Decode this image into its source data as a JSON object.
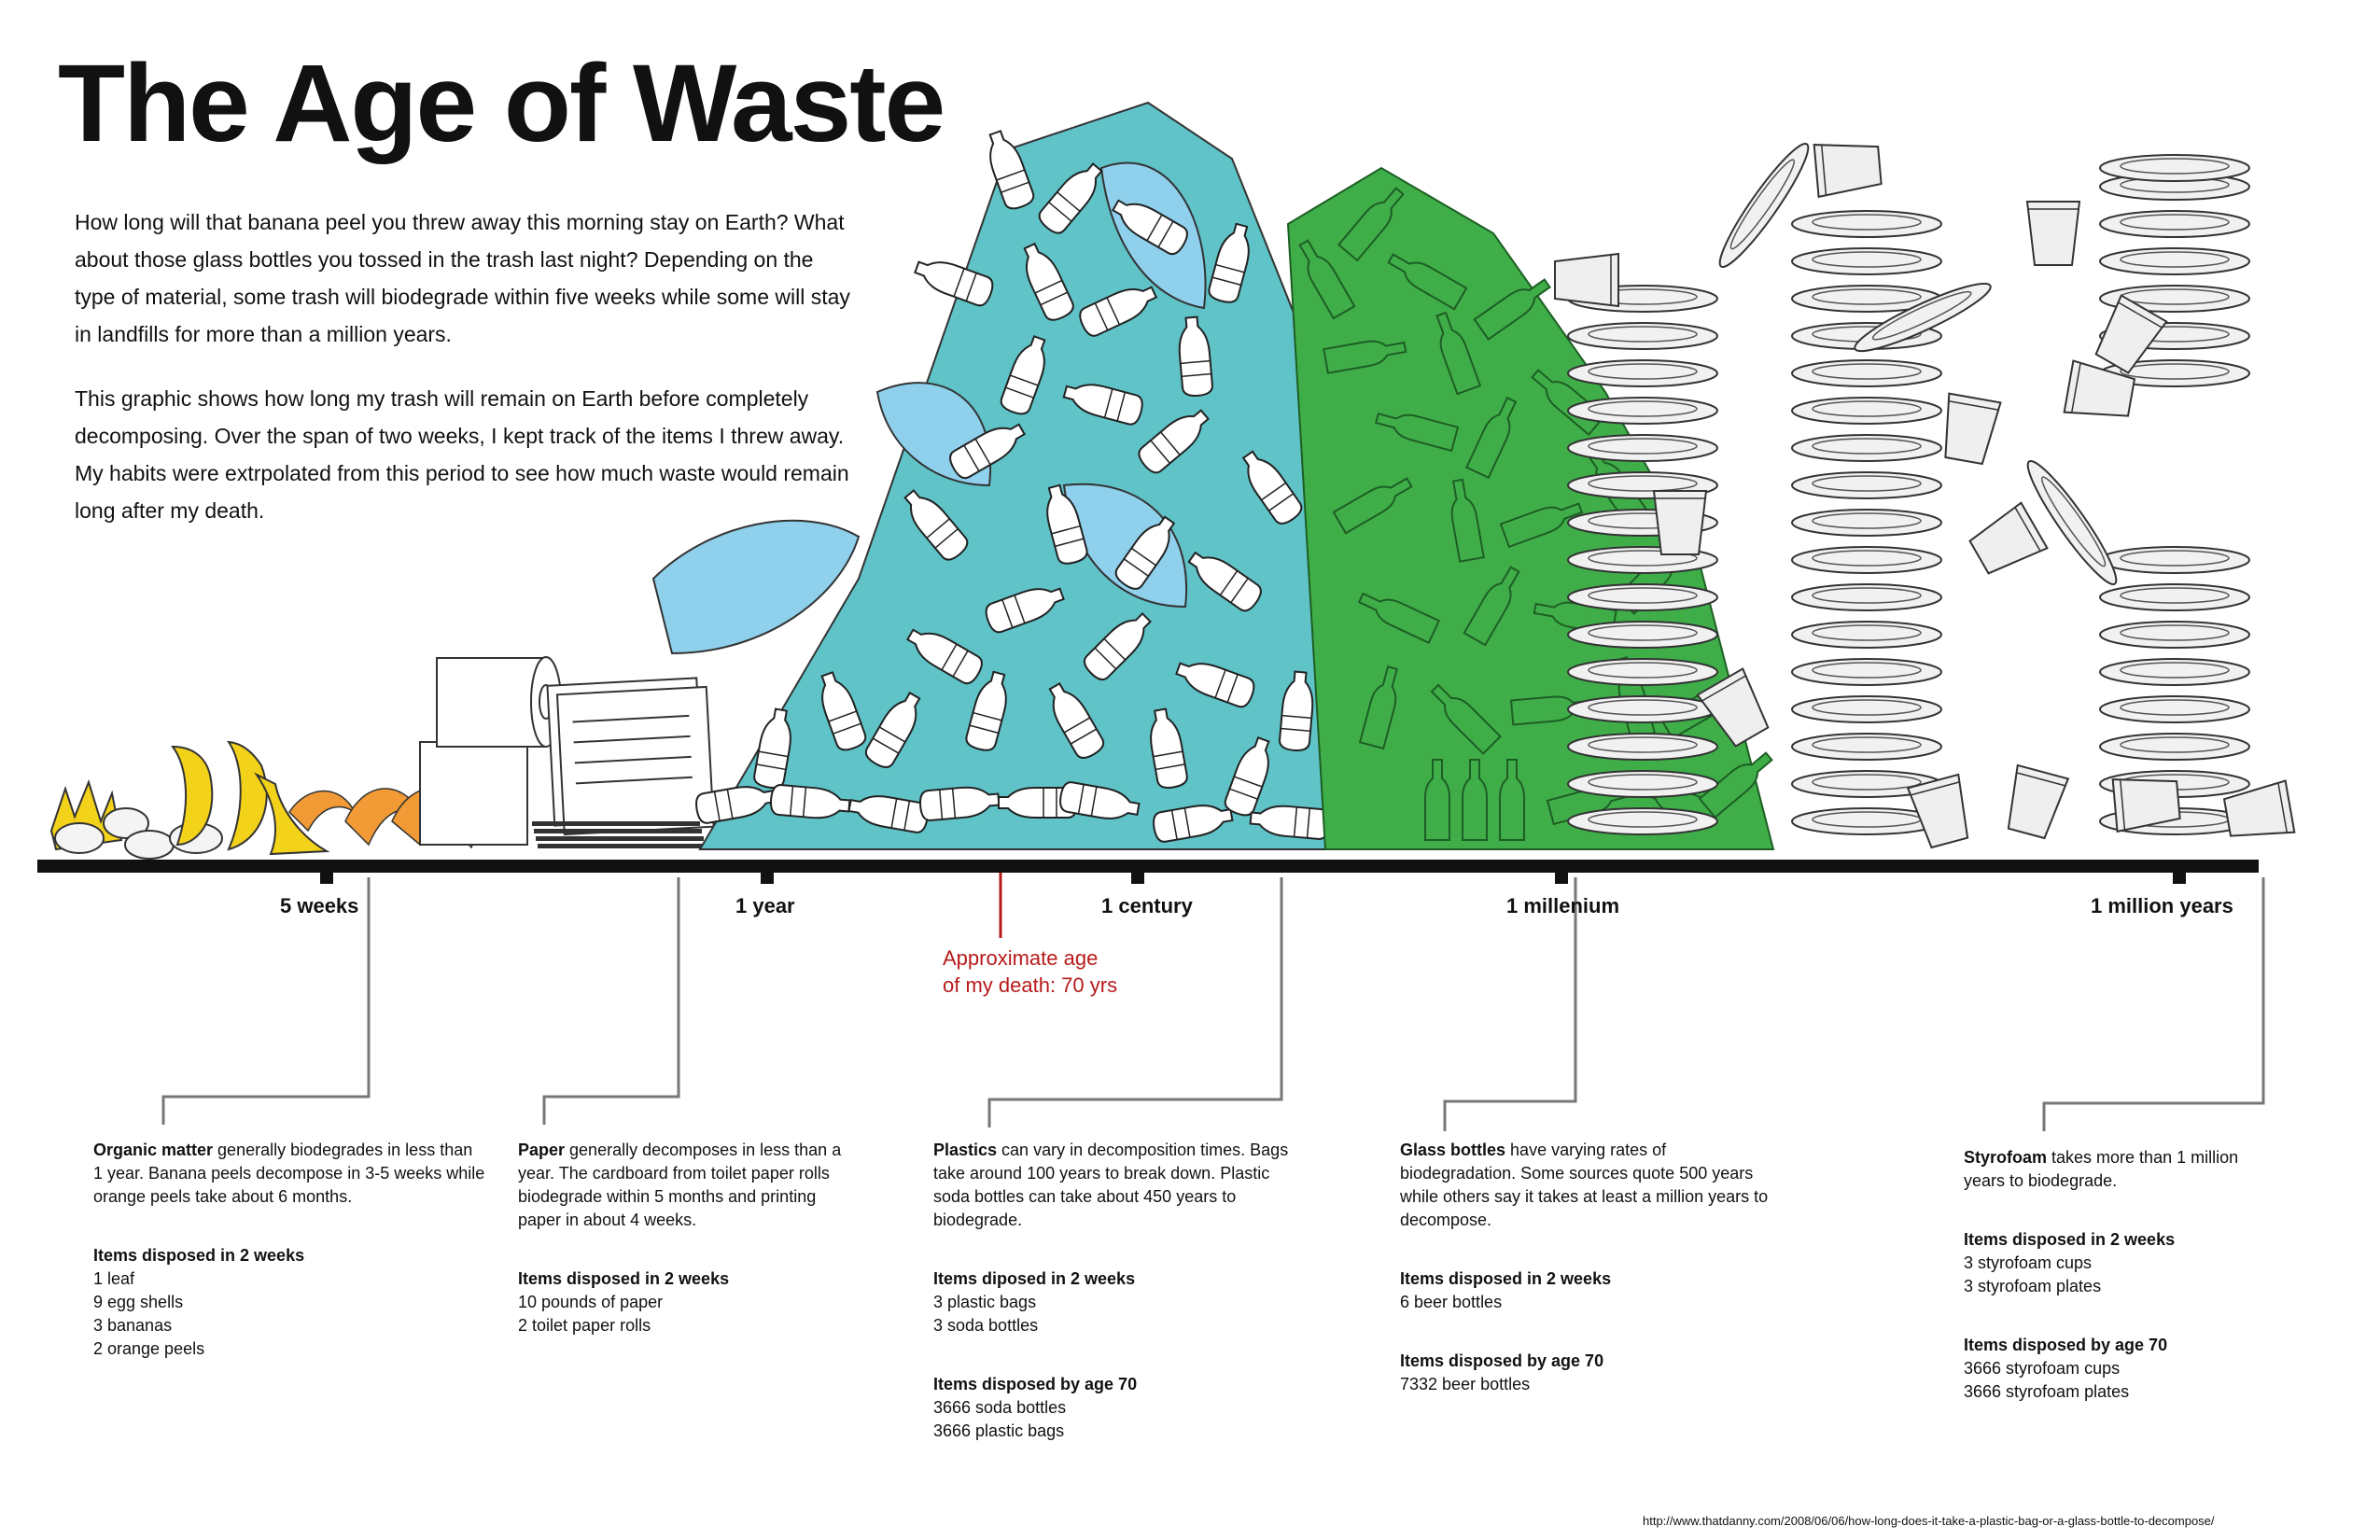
{
  "title": "The Age of Waste",
  "intro": [
    "How long will that banana peel you threw away this morning stay on Earth? What about those glass bottles you tossed in the trash last night? Depending on the type of material, some trash will biodegrade within five weeks while some will stay in landfills for more than a million years.",
    "This graphic shows how long my trash will remain on Earth before completely decomposing. Over the span of two weeks, I kept track of the items I threw away. My habits were extrpolated from this period to see how much waste would remain long after my death."
  ],
  "timeline": {
    "ticks": [
      "5 weeks",
      "1 year",
      "1 century",
      "1 millenium",
      "1 million years"
    ],
    "death_marker": [
      "Approximate age",
      "of my death: 70 yrs"
    ]
  },
  "categories": [
    {
      "name": "Organic matter",
      "description": " generally biodegrades in less than 1 year. Banana peels decompose in 3-5 weeks while orange peels take about 6 months.",
      "lists": [
        {
          "heading": "Items disposed in 2 weeks",
          "items": [
            "1 leaf",
            "9 egg shells",
            "3 bananas",
            "2 orange peels"
          ]
        }
      ]
    },
    {
      "name": "Paper",
      "description": " generally decomposes in less than a year. The cardboard from toilet paper rolls biodegrade within 5 months and printing paper in about 4 weeks.",
      "lists": [
        {
          "heading": "Items disposed in 2 weeks",
          "items": [
            "10 pounds of paper",
            "2 toilet paper rolls"
          ]
        }
      ]
    },
    {
      "name": "Plastics",
      "description": " can vary in decomposition times. Bags take around 100 years to break down. Plastic soda bottles can take about 450 years to biodegrade.",
      "lists": [
        {
          "heading": "Items diposed in 2 weeks",
          "items": [
            "3 plastic bags",
            "3 soda bottles"
          ]
        },
        {
          "heading": "Items disposed by age 70",
          "items": [
            "3666 soda bottles",
            "3666 plastic bags"
          ]
        }
      ]
    },
    {
      "name": "Glass bottles",
      "description": " have varying rates of biodegradation. Some sources quote 500 years while others say it takes at least a million years to decompose.",
      "lists": [
        {
          "heading": "Items disposed in 2 weeks",
          "items": [
            "6 beer bottles"
          ]
        },
        {
          "heading": "Items disposed by age 70",
          "items": [
            "7332 beer bottles"
          ]
        }
      ]
    },
    {
      "name": "Styrofoam",
      "description": "  takes more than 1 million years to biodegrade.",
      "lists": [
        {
          "heading": "Items disposed in 2 weeks",
          "items": [
            "3 styrofoam cups",
            "3 styrofoam plates"
          ]
        },
        {
          "heading": "Items disposed by age 70",
          "items": [
            "3666 styrofoam cups",
            "3666 styrofoam plates"
          ]
        }
      ]
    }
  ],
  "source_url": "http://www.thatdanny.com/2008/06/06/how-long-does-it-take-a-plastic-bag-or-a-glass-bottle-to-decompose/",
  "colors": {
    "timeline": "#111111",
    "death_marker": "#b81a1a",
    "connector": "#777777",
    "banana": "#f3d21a",
    "orange_peel": "#f29a35",
    "plastic_bag": "#8fd0ec",
    "soda_bottle_bg": "#5fc3c8",
    "glass_bottle": "#3fae49",
    "styrofoam": "#e8e8e8"
  }
}
